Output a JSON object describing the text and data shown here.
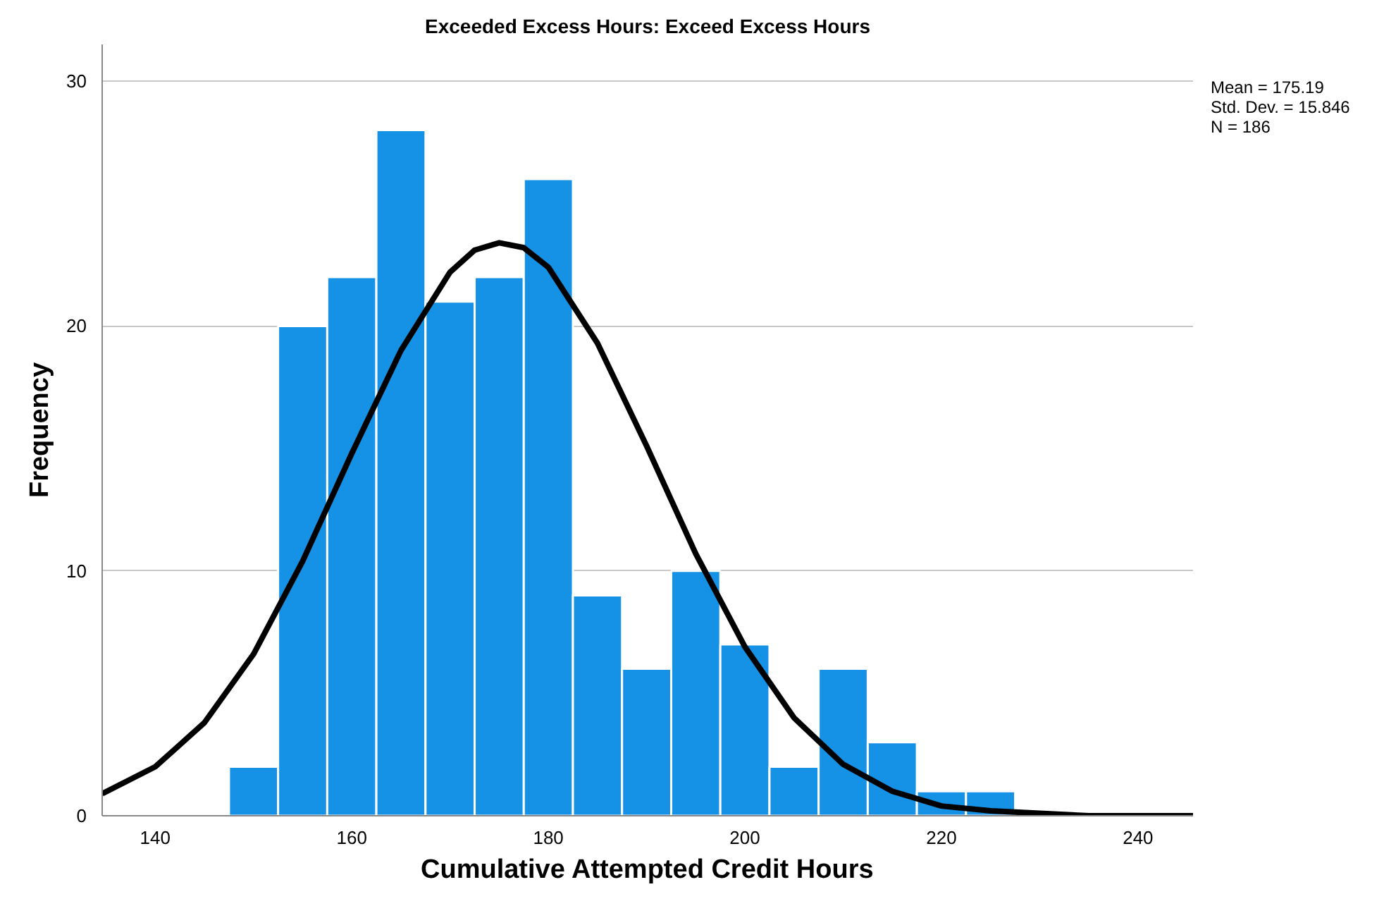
{
  "chart_data": {
    "type": "histogram",
    "title": "Exceeded Excess Hours: Exceed Excess Hours",
    "xlabel": "Cumulative Attempted Credit Hours",
    "ylabel": "Frequency",
    "bins": [
      147.5,
      152.5,
      157.5,
      162.5,
      167.5,
      172.5,
      177.5,
      182.5,
      187.5,
      192.5,
      197.5,
      202.5,
      207.5,
      212.5,
      217.5,
      222.5,
      227.5
    ],
    "values": [
      2,
      20,
      22,
      28,
      21,
      22,
      26,
      9,
      6,
      10,
      7,
      2,
      6,
      3,
      1,
      1
    ],
    "color": "#1591e6",
    "series": [
      {
        "type": "line",
        "color": "#000000",
        "x": [
          134.6,
          140,
          145,
          150,
          155,
          160,
          165,
          170,
          172.5,
          175,
          177.5,
          180,
          185,
          190,
          195,
          200,
          205,
          210,
          215,
          220,
          225,
          230,
          235,
          240,
          245.6
        ],
        "values": [
          0.9,
          2.0,
          3.8,
          6.6,
          10.4,
          14.8,
          19.0,
          22.2,
          23.1,
          23.4,
          23.2,
          22.4,
          19.3,
          15.1,
          10.7,
          6.9,
          4.0,
          2.1,
          1.0,
          0.4,
          0.2,
          0.1,
          0.0,
          0.0,
          0.0
        ]
      }
    ],
    "xlim": [
      134.6,
      245.6
    ],
    "ylim": [
      0,
      31.5
    ],
    "xticks": [
      140,
      160,
      180,
      200,
      220,
      240
    ],
    "yticks": [
      0,
      10,
      20,
      30
    ],
    "grid": "y",
    "annotations": [
      "Mean = 175.19",
      "Std. Dev. = 15.846",
      "N = 186"
    ]
  }
}
